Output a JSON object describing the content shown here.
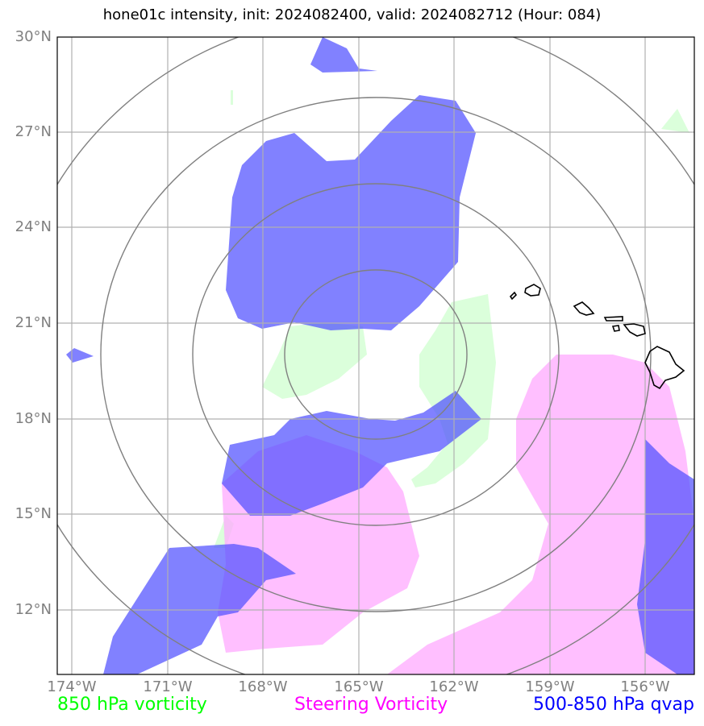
{
  "title": "hone01c intensity, init: 2024082400, valid: 2024082712 (Hour: 084)",
  "lat_labels": [
    "30°N",
    "27°N",
    "24°N",
    "21°N",
    "18°N",
    "15°N",
    "12°N"
  ],
  "lon_labels": [
    "174°W",
    "171°W",
    "168°W",
    "165°W",
    "162°W",
    "159°W",
    "156°W"
  ],
  "legend": {
    "green": "850 hPa vorticity",
    "pink": "Steering Vorticity",
    "blue": "500-850 hPa qvap"
  },
  "colors": {
    "green_label": "#00ff00",
    "pink_label": "#ff00ff",
    "blue_label": "#0000ff",
    "green_fill": "#ccffcc",
    "pink_fill": "#ffaaff",
    "blue_fill": "#5050ff",
    "gridline": "#b0b0b0",
    "range_rings": "#808080",
    "coastline": "#000000"
  }
}
